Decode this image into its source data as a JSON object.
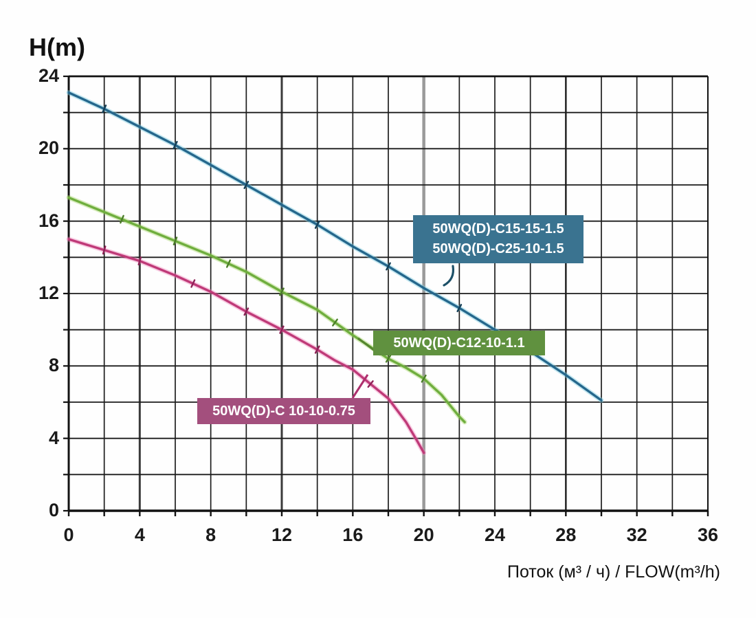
{
  "axis": {
    "y_title": "H(m)",
    "x_title": "Поток (м³ / ч) / FLOW(m³/h)"
  },
  "annotations": {
    "teal_box": {
      "line1": "50WQ(D)-C15-15-1.5",
      "line2": "50WQ(D)-C25-10-1.5",
      "bg_color": "#3a7390"
    },
    "green_box": {
      "label": "50WQ(D)-C12-10-1.1",
      "bg_color": "#60913f"
    },
    "pink_box": {
      "label": "50WQ(D)-C 10-10-0.75",
      "bg_color": "#a34f7d"
    }
  },
  "chart_data": {
    "type": "line",
    "title": "H(m)",
    "xlabel": "Поток (м³ / ч) / FLOW(m³/h)",
    "ylabel": "H(m)",
    "xlim": [
      0,
      36
    ],
    "ylim": [
      0,
      24
    ],
    "x_ticks": [
      0,
      4,
      8,
      12,
      16,
      20,
      24,
      28,
      32,
      36
    ],
    "y_ticks": [
      0,
      4,
      8,
      12,
      16,
      20,
      24
    ],
    "grid": true,
    "grid_step": 2,
    "legend_position": "inline-callouts",
    "emphasized_x_gridlines": [
      {
        "x": 4,
        "color": "#3a3a3a",
        "width": 3
      },
      {
        "x": 12,
        "color": "#3a3a3a",
        "width": 3
      },
      {
        "x": 20,
        "color": "#9a9a9a",
        "width": 4.5
      },
      {
        "x": 28,
        "color": "#2a2a2a",
        "width": 2.6
      }
    ],
    "series": [
      {
        "name": "50WQ(D)-C15-15-1.5 / 50WQ(D)-C25-10-1.5",
        "color": "#25678c",
        "halo_color": "rgba(125,205,225,0.45)",
        "tick_color": "#143f57",
        "tick_flows": [
          2,
          6,
          10,
          14,
          18,
          22,
          26
        ],
        "points": [
          [
            0,
            23.1
          ],
          [
            2,
            22.2
          ],
          [
            4,
            21.2
          ],
          [
            6,
            20.2
          ],
          [
            8,
            19.1
          ],
          [
            10,
            18.0
          ],
          [
            12,
            16.9
          ],
          [
            14,
            15.8
          ],
          [
            16,
            14.6
          ],
          [
            18,
            13.5
          ],
          [
            20,
            12.3
          ],
          [
            22,
            11.2
          ],
          [
            24,
            10.0
          ],
          [
            26,
            8.8
          ],
          [
            28,
            7.5
          ],
          [
            30,
            6.1
          ]
        ]
      },
      {
        "name": "50WQ(D)-C12-10-1.1",
        "color": "#6fae3e",
        "halo_color": "rgba(160,210,95,0.4)",
        "tick_color": "#4a7d28",
        "tick_flows": [
          3,
          6,
          9,
          12,
          15,
          18,
          20
        ],
        "points": [
          [
            0,
            17.3
          ],
          [
            2,
            16.5
          ],
          [
            4,
            15.7
          ],
          [
            6,
            14.9
          ],
          [
            8,
            14.1
          ],
          [
            10,
            13.2
          ],
          [
            12,
            12.1
          ],
          [
            14,
            11.1
          ],
          [
            16,
            9.7
          ],
          [
            18,
            8.4
          ],
          [
            19,
            7.9
          ],
          [
            20,
            7.3
          ],
          [
            21,
            6.4
          ],
          [
            22,
            5.2
          ],
          [
            22.3,
            4.9
          ]
        ]
      },
      {
        "name": "50WQ(D)-C 10-10-0.75",
        "color": "#bf3a78",
        "halo_color": "rgba(240,130,185,0.4)",
        "tick_color": "#8e2257",
        "tick_flows": [
          2,
          4,
          7,
          10,
          12,
          14,
          17
        ],
        "points": [
          [
            0,
            15.0
          ],
          [
            2,
            14.4
          ],
          [
            4,
            13.8
          ],
          [
            6,
            13.0
          ],
          [
            8,
            12.1
          ],
          [
            10,
            11.0
          ],
          [
            12,
            10.0
          ],
          [
            14,
            8.9
          ],
          [
            15,
            8.3
          ],
          [
            16,
            7.8
          ],
          [
            17,
            7.0
          ],
          [
            18,
            6.2
          ],
          [
            19,
            4.9
          ],
          [
            19.6,
            3.9
          ],
          [
            20,
            3.2
          ]
        ]
      }
    ]
  }
}
